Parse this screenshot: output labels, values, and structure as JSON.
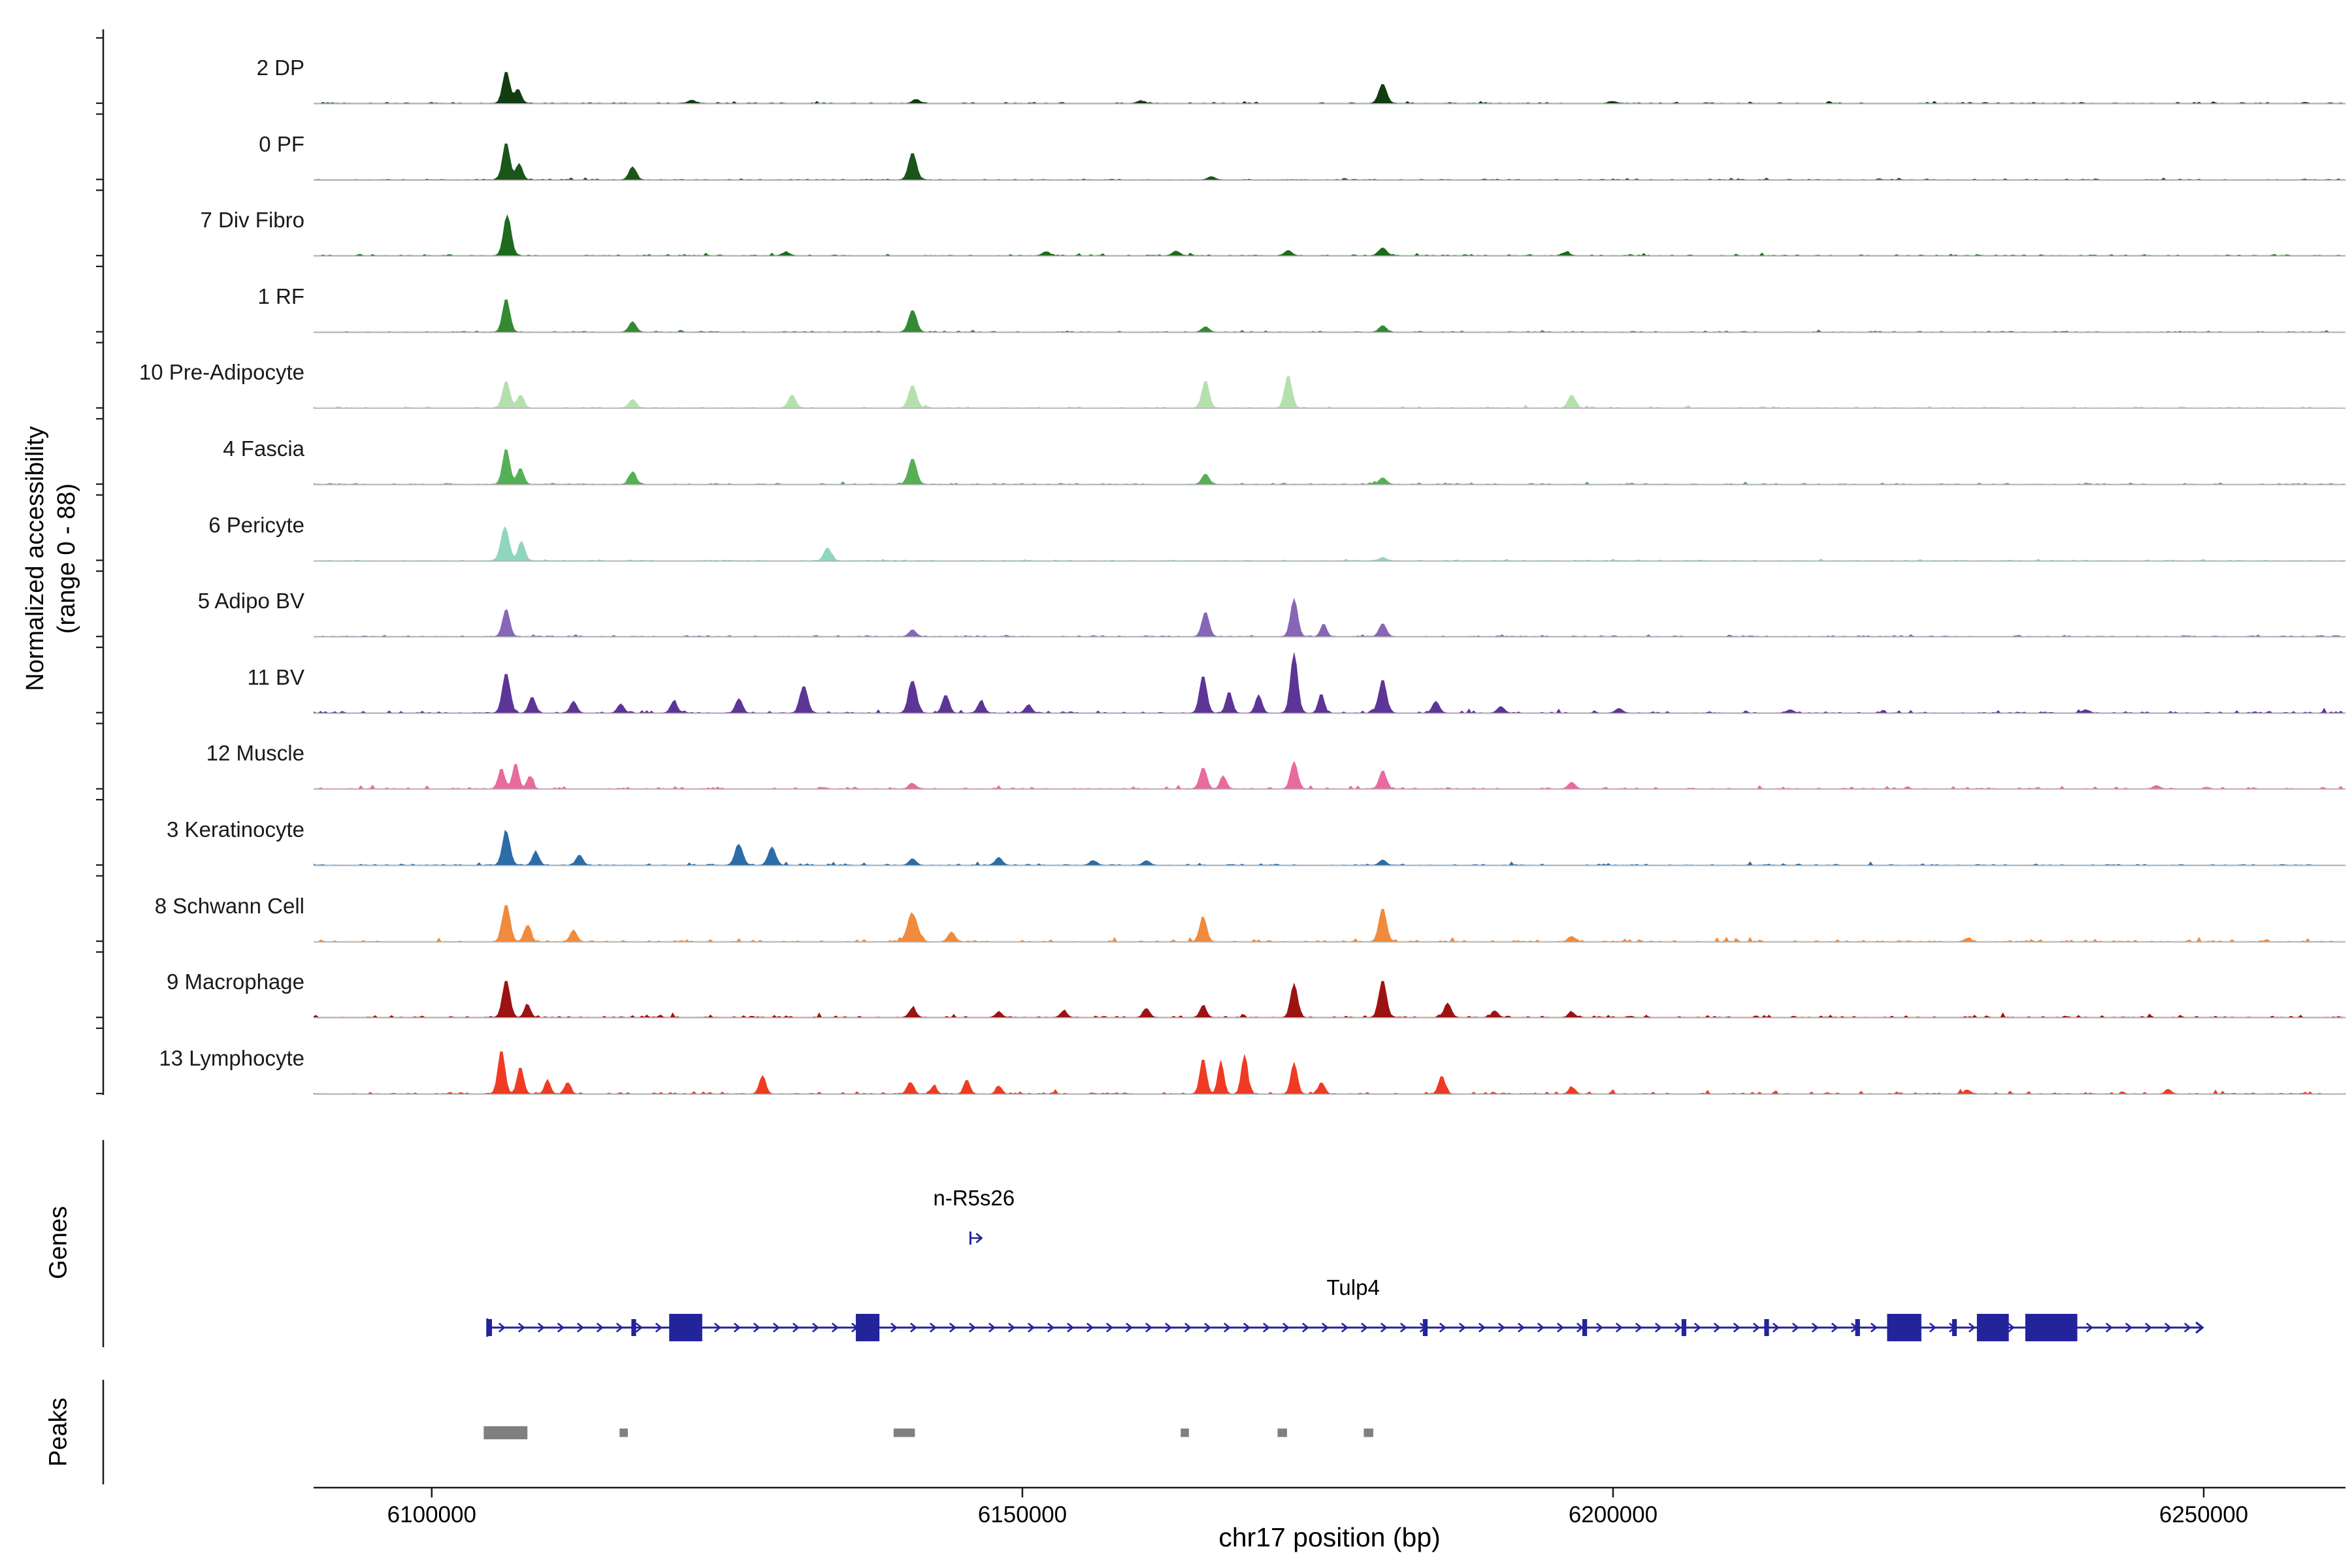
{
  "y_axis": {
    "label_line1": "Normalized accessibility",
    "label_line2": "(range 0 - 88)"
  },
  "sections": {
    "genes_label": "Genes",
    "peaks_label": "Peaks"
  },
  "x_axis": {
    "title": "chr17 position (bp)",
    "tick_labels": [
      "6100000",
      "6150000",
      "6200000",
      "6250000"
    ],
    "tick_values": [
      6100000,
      6150000,
      6200000,
      6250000
    ]
  },
  "chart_data": {
    "type": "area",
    "title": "",
    "x_range_bp": [
      6090000,
      6262000
    ],
    "y_range": [
      0,
      88
    ],
    "chromosome": "chr17",
    "tracks": [
      {
        "label": "2 DP",
        "color": "#123d12",
        "noise": 0.45,
        "peaks": [
          [
            6106300,
            0.5,
            300
          ],
          [
            6107300,
            0.22,
            280
          ],
          [
            6122000,
            0.05,
            300
          ],
          [
            6141000,
            0.06,
            300
          ],
          [
            6160000,
            0.04,
            300
          ],
          [
            6180500,
            0.3,
            330
          ],
          [
            6200000,
            0.03,
            300
          ]
        ]
      },
      {
        "label": "0 PF",
        "color": "#1a551a",
        "noise": 0.4,
        "peaks": [
          [
            6106300,
            0.58,
            300
          ],
          [
            6107400,
            0.25,
            280
          ],
          [
            6117000,
            0.2,
            300
          ],
          [
            6140700,
            0.42,
            330
          ],
          [
            6166000,
            0.05,
            300
          ]
        ]
      },
      {
        "label": "7 Div Fibro",
        "color": "#1e6b1e",
        "noise": 0.5,
        "peaks": [
          [
            6106400,
            0.62,
            320
          ],
          [
            6130000,
            0.05,
            300
          ],
          [
            6152000,
            0.06,
            300
          ],
          [
            6163000,
            0.07,
            300
          ],
          [
            6172500,
            0.08,
            300
          ],
          [
            6180500,
            0.12,
            330
          ],
          [
            6196000,
            0.05,
            300
          ]
        ]
      },
      {
        "label": "1 RF",
        "color": "#338a33",
        "noise": 0.4,
        "peaks": [
          [
            6106300,
            0.52,
            300
          ],
          [
            6117000,
            0.16,
            300
          ],
          [
            6140700,
            0.34,
            330
          ],
          [
            6165500,
            0.08,
            300
          ],
          [
            6180500,
            0.1,
            300
          ]
        ]
      },
      {
        "label": "10 Pre-Adipocyte",
        "color": "#b5e0ad",
        "noise": 0.55,
        "peaks": [
          [
            6106300,
            0.42,
            300
          ],
          [
            6107500,
            0.2,
            280
          ],
          [
            6117000,
            0.13,
            300
          ],
          [
            6130500,
            0.2,
            300
          ],
          [
            6140700,
            0.35,
            330
          ],
          [
            6165500,
            0.42,
            300
          ],
          [
            6172500,
            0.5,
            300
          ],
          [
            6196500,
            0.2,
            300
          ]
        ]
      },
      {
        "label": "4 Fascia",
        "color": "#55b055",
        "noise": 0.5,
        "peaks": [
          [
            6106300,
            0.55,
            300
          ],
          [
            6107500,
            0.25,
            280
          ],
          [
            6117000,
            0.18,
            300
          ],
          [
            6140700,
            0.4,
            330
          ],
          [
            6165500,
            0.16,
            300
          ],
          [
            6180500,
            0.1,
            300
          ]
        ]
      },
      {
        "label": "6 Pericyte",
        "color": "#8fd6bd",
        "noise": 0.35,
        "peaks": [
          [
            6106200,
            0.52,
            340
          ],
          [
            6107600,
            0.3,
            280
          ],
          [
            6133500,
            0.2,
            300
          ],
          [
            6180500,
            0.05,
            300
          ]
        ]
      },
      {
        "label": "5 Adipo BV",
        "color": "#8766b8",
        "noise": 0.5,
        "peaks": [
          [
            6106300,
            0.42,
            300
          ],
          [
            6140700,
            0.1,
            300
          ],
          [
            6165500,
            0.38,
            300
          ],
          [
            6173000,
            0.58,
            300
          ],
          [
            6175500,
            0.2,
            250
          ],
          [
            6180500,
            0.2,
            300
          ]
        ]
      },
      {
        "label": "11 BV",
        "color": "#5d3596",
        "noise": 1.0,
        "peaks": [
          [
            6106300,
            0.62,
            320
          ],
          [
            6108500,
            0.25,
            280
          ],
          [
            6112000,
            0.18,
            280
          ],
          [
            6116000,
            0.14,
            280
          ],
          [
            6120500,
            0.18,
            280
          ],
          [
            6126000,
            0.22,
            280
          ],
          [
            6131500,
            0.42,
            320
          ],
          [
            6140700,
            0.5,
            330
          ],
          [
            6143500,
            0.28,
            280
          ],
          [
            6146500,
            0.18,
            280
          ],
          [
            6150500,
            0.12,
            280
          ],
          [
            6165300,
            0.58,
            300
          ],
          [
            6167500,
            0.33,
            270
          ],
          [
            6170000,
            0.28,
            270
          ],
          [
            6173000,
            0.92,
            300
          ],
          [
            6175300,
            0.3,
            250
          ],
          [
            6180500,
            0.52,
            310
          ],
          [
            6185000,
            0.18,
            290
          ],
          [
            6190500,
            0.1,
            290
          ],
          [
            6200500,
            0.07,
            290
          ],
          [
            6215000,
            0.05,
            290
          ],
          [
            6240000,
            0.05,
            290
          ]
        ]
      },
      {
        "label": "12 Muscle",
        "color": "#e86a9e",
        "noise": 0.8,
        "peaks": [
          [
            6105900,
            0.32,
            260
          ],
          [
            6107100,
            0.4,
            260
          ],
          [
            6108300,
            0.2,
            240
          ],
          [
            6140700,
            0.08,
            290
          ],
          [
            6165300,
            0.33,
            290
          ],
          [
            6167000,
            0.2,
            250
          ],
          [
            6173000,
            0.42,
            290
          ],
          [
            6180500,
            0.28,
            290
          ],
          [
            6196500,
            0.1,
            290
          ],
          [
            6246000,
            0.05,
            270
          ]
        ]
      },
      {
        "label": "3 Keratinocyte",
        "color": "#2b6da8",
        "noise": 0.65,
        "peaks": [
          [
            6106300,
            0.52,
            320
          ],
          [
            6108800,
            0.2,
            280
          ],
          [
            6112500,
            0.16,
            280
          ],
          [
            6126000,
            0.32,
            330
          ],
          [
            6128800,
            0.28,
            310
          ],
          [
            6140700,
            0.1,
            290
          ],
          [
            6148000,
            0.12,
            290
          ],
          [
            6156000,
            0.07,
            290
          ],
          [
            6160500,
            0.07,
            290
          ],
          [
            6180500,
            0.08,
            290
          ]
        ]
      },
      {
        "label": "8 Schwann Cell",
        "color": "#f08a3c",
        "noise": 0.9,
        "peaks": [
          [
            6106300,
            0.58,
            320
          ],
          [
            6108100,
            0.25,
            280
          ],
          [
            6112000,
            0.18,
            280
          ],
          [
            6140700,
            0.42,
            420
          ],
          [
            6144000,
            0.15,
            290
          ],
          [
            6165300,
            0.38,
            290
          ],
          [
            6180500,
            0.52,
            310
          ],
          [
            6196500,
            0.08,
            290
          ],
          [
            6230000,
            0.05,
            290
          ]
        ]
      },
      {
        "label": "9 Macrophage",
        "color": "#9c1313",
        "noise": 0.9,
        "peaks": [
          [
            6106300,
            0.58,
            310
          ],
          [
            6108100,
            0.2,
            260
          ],
          [
            6140700,
            0.14,
            290
          ],
          [
            6148000,
            0.08,
            270
          ],
          [
            6153500,
            0.1,
            270
          ],
          [
            6160500,
            0.14,
            270
          ],
          [
            6165300,
            0.18,
            270
          ],
          [
            6173000,
            0.52,
            290
          ],
          [
            6180500,
            0.58,
            310
          ],
          [
            6186000,
            0.22,
            290
          ],
          [
            6190000,
            0.1,
            270
          ],
          [
            6196500,
            0.08,
            270
          ]
        ]
      },
      {
        "label": "13 Lymphocyte",
        "color": "#ef3b24",
        "noise": 0.9,
        "peaks": [
          [
            6105900,
            0.68,
            290
          ],
          [
            6107500,
            0.42,
            270
          ],
          [
            6109800,
            0.22,
            240
          ],
          [
            6111500,
            0.18,
            240
          ],
          [
            6128000,
            0.28,
            270
          ],
          [
            6140500,
            0.18,
            270
          ],
          [
            6142500,
            0.12,
            240
          ],
          [
            6145300,
            0.22,
            250
          ],
          [
            6148000,
            0.12,
            240
          ],
          [
            6165300,
            0.55,
            270
          ],
          [
            6166800,
            0.5,
            250
          ],
          [
            6168800,
            0.6,
            260
          ],
          [
            6173000,
            0.48,
            270
          ],
          [
            6175300,
            0.18,
            240
          ],
          [
            6185500,
            0.28,
            270
          ],
          [
            6196500,
            0.1,
            250
          ],
          [
            6230000,
            0.06,
            250
          ],
          [
            6247000,
            0.07,
            250
          ]
        ]
      }
    ],
    "genes": [
      {
        "name": "n-R5s26",
        "type": "small",
        "start": 6145600,
        "end": 6146600,
        "label_bp": 6145900
      },
      {
        "name": "Tulp4",
        "type": "long",
        "start": 6104700,
        "end": 6249900,
        "label_bp": 6178000,
        "exons": [
          [
            6104700,
            6105100
          ],
          [
            6116900,
            6117300
          ],
          [
            6120100,
            6122900
          ],
          [
            6135900,
            6137900
          ],
          [
            6183900,
            6184300
          ],
          [
            6197400,
            6197800
          ],
          [
            6205800,
            6206200
          ],
          [
            6212800,
            6213200
          ],
          [
            6220500,
            6220900
          ],
          [
            6223200,
            6226100
          ],
          [
            6228700,
            6229100
          ],
          [
            6230800,
            6233500
          ],
          [
            6234900,
            6239300
          ]
        ]
      }
    ],
    "peaks_track": [
      {
        "start": 6104400,
        "end": 6108100,
        "tall": true
      },
      {
        "start": 6115900,
        "end": 6116600,
        "tall": false
      },
      {
        "start": 6139100,
        "end": 6140900,
        "tall": false
      },
      {
        "start": 6163400,
        "end": 6164100,
        "tall": false
      },
      {
        "start": 6171600,
        "end": 6172400,
        "tall": false
      },
      {
        "start": 6178900,
        "end": 6179700,
        "tall": false
      }
    ],
    "gene_color": "#23239b",
    "peak_box_color": "#808080",
    "baseline_color": "#b0b0b0",
    "axis_color": "#1a1a1a"
  }
}
